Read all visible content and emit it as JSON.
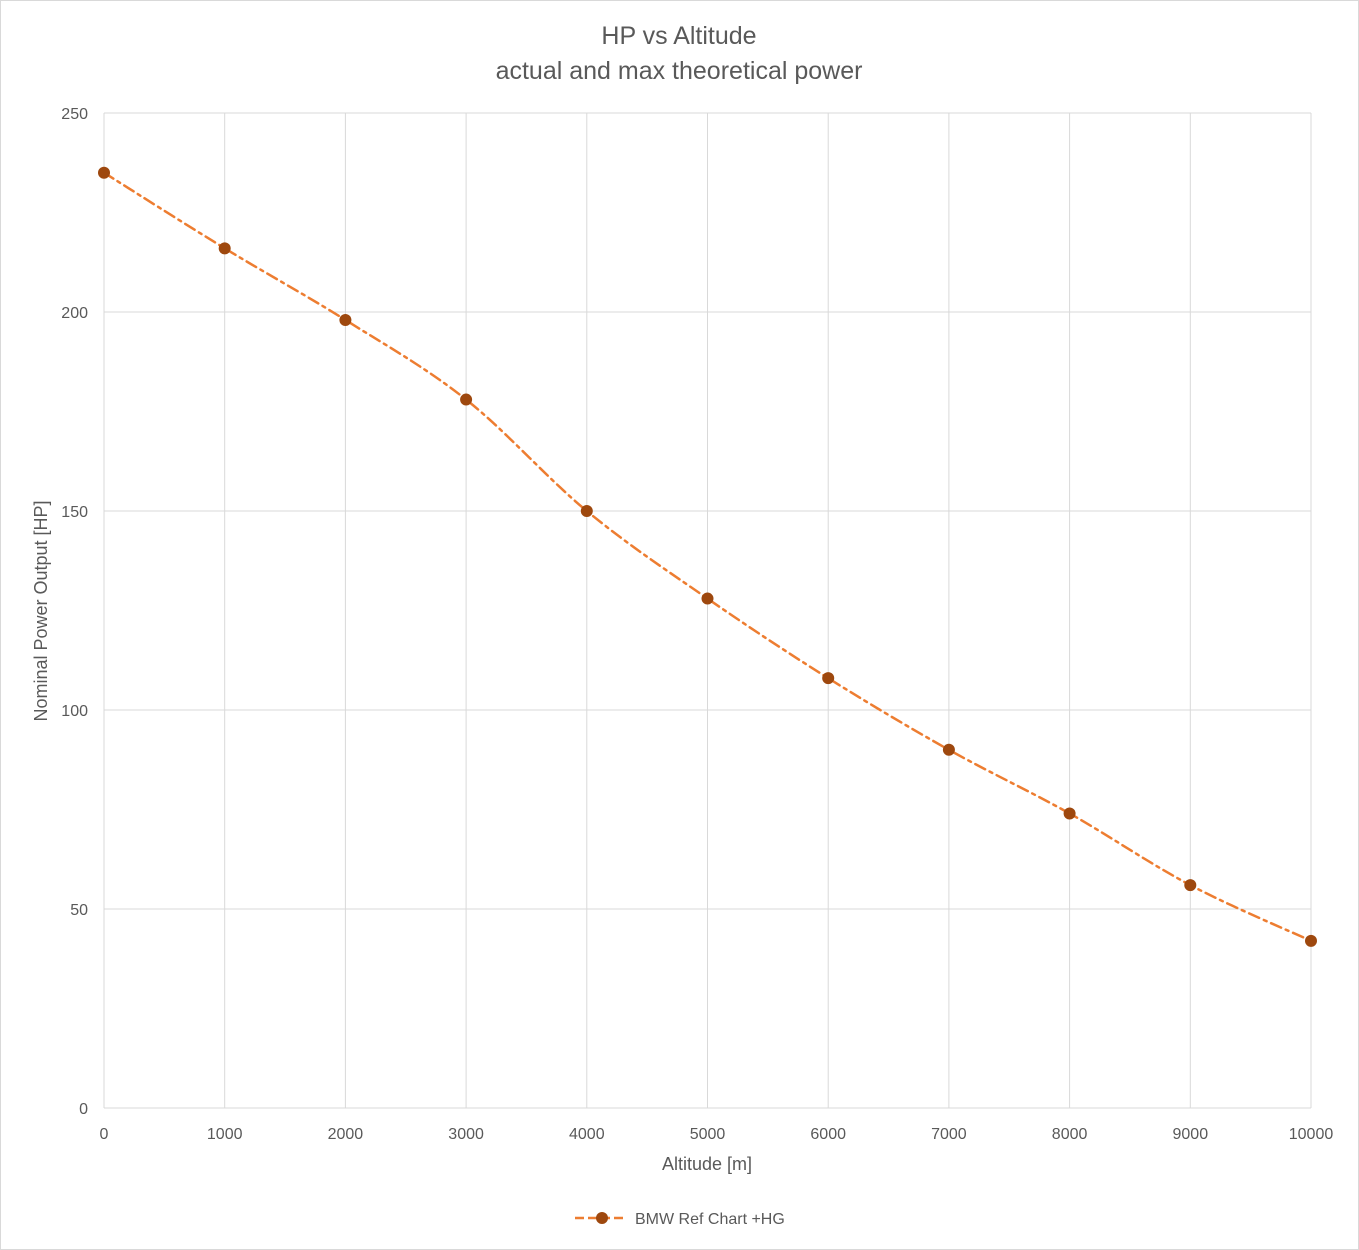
{
  "chart_data": {
    "type": "line",
    "title": "HP vs Altitude",
    "subtitle": "actual and max theoretical power",
    "xlabel": "Altitude [m]",
    "ylabel": "Nominal Power Output [HP]",
    "xlim": [
      0,
      10000
    ],
    "ylim": [
      0,
      250
    ],
    "x_ticks": [
      0,
      1000,
      2000,
      3000,
      4000,
      5000,
      6000,
      7000,
      8000,
      9000,
      10000
    ],
    "y_ticks": [
      0,
      50,
      100,
      150,
      200,
      250
    ],
    "grid": true,
    "legend_position": "bottom",
    "series": [
      {
        "name": "BMW Ref Chart +HG",
        "line_color": "#ED7D31",
        "marker_color": "#9E480E",
        "line_style": "dash-dot",
        "x": [
          0,
          1000,
          2000,
          3000,
          4000,
          5000,
          6000,
          7000,
          8000,
          9000,
          10000
        ],
        "y": [
          235,
          216,
          198,
          178,
          150,
          128,
          108,
          90,
          74,
          56,
          42
        ]
      }
    ]
  }
}
